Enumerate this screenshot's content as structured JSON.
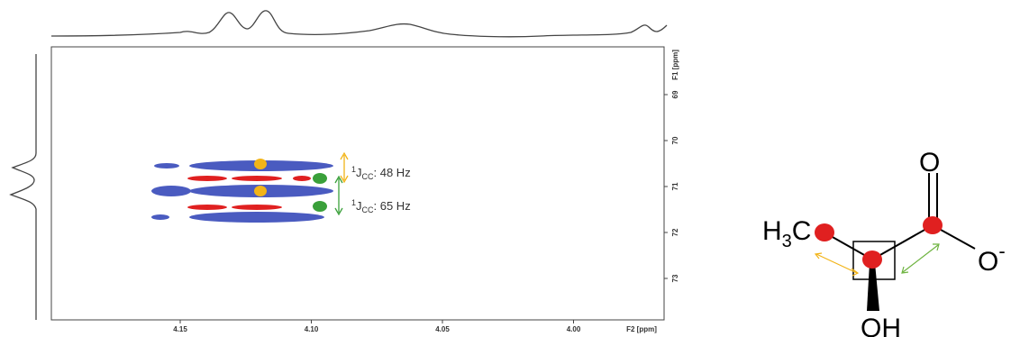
{
  "spectrum": {
    "x_axis": {
      "ticks": [
        "4.15",
        "4.10",
        "4.05",
        "4.00"
      ],
      "label": "F2 [ppm]"
    },
    "y_axis": {
      "ticks": [
        "69",
        "70",
        "71",
        "72",
        "73"
      ],
      "label": "F1 [ppm]"
    },
    "annotations": [
      {
        "sup": "1",
        "symbol": "J",
        "sub": "CC",
        "text": ": 48 Hz"
      },
      {
        "sup": "1",
        "symbol": "J",
        "sub": "CC",
        "text": ": 65 Hz"
      }
    ]
  },
  "molecule": {
    "carbonyl_oxygen": "O",
    "carboxylate_oxygen": {
      "symbol": "O",
      "charge": "-"
    },
    "methyl": {
      "h": "H",
      "count": "3",
      "c": "C"
    },
    "hydroxyl": "OH"
  }
}
